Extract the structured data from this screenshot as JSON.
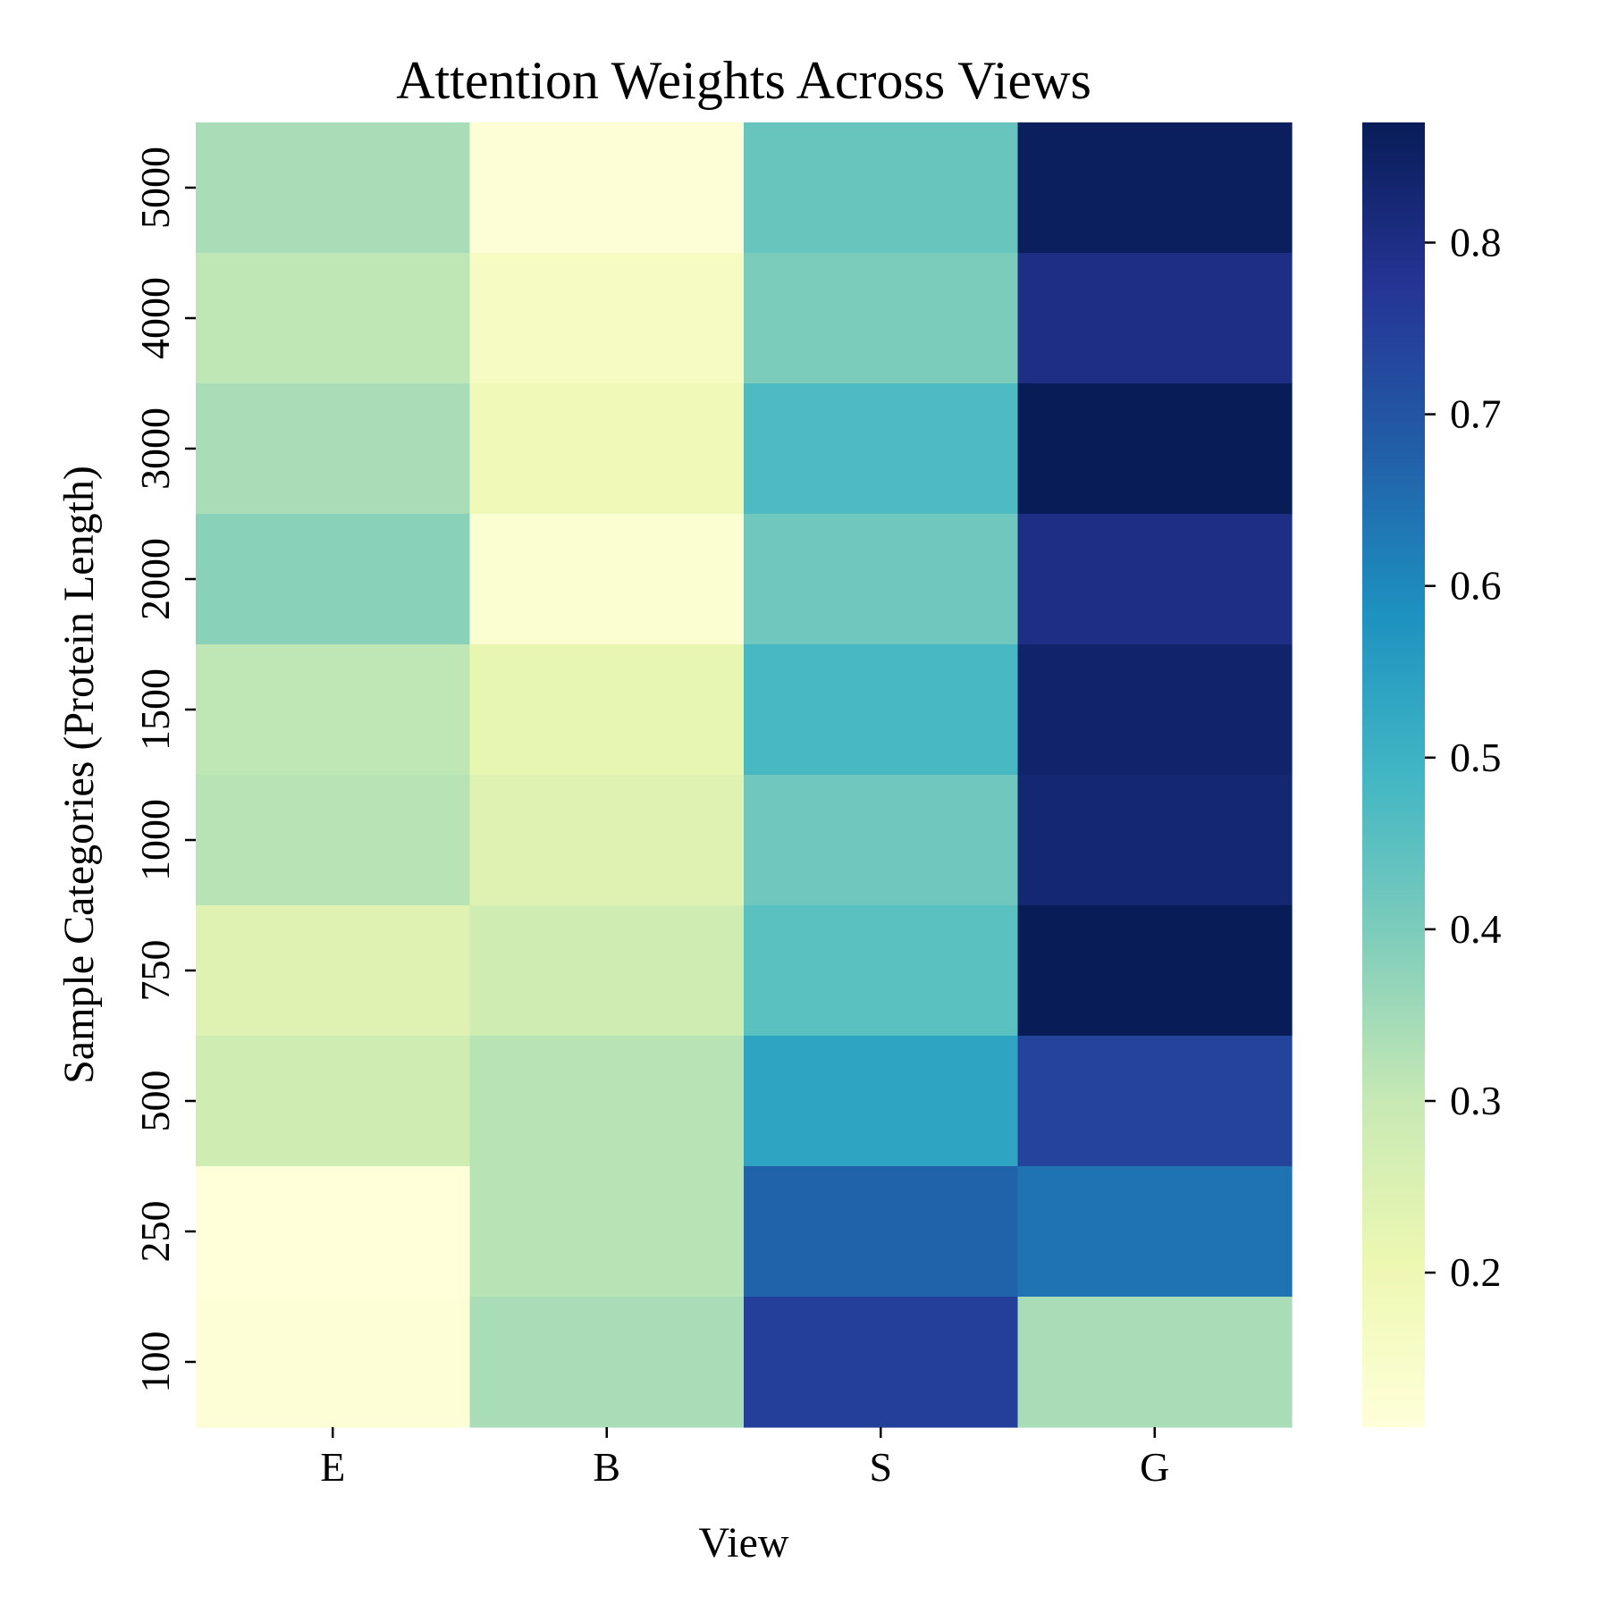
{
  "chart_data": {
    "type": "heatmap",
    "title": "Attention Weights Across Views",
    "xlabel": "View",
    "ylabel": "Sample Categories (Protein Length)",
    "x_categories": [
      "E",
      "B",
      "S",
      "G"
    ],
    "y_categories": [
      "5000",
      "4000",
      "3000",
      "2000",
      "1500",
      "1000",
      "750",
      "500",
      "250",
      "100"
    ],
    "values": [
      [
        0.34,
        0.12,
        0.43,
        0.86
      ],
      [
        0.31,
        0.16,
        0.4,
        0.8
      ],
      [
        0.34,
        0.19,
        0.47,
        0.87
      ],
      [
        0.38,
        0.13,
        0.42,
        0.8
      ],
      [
        0.31,
        0.22,
        0.48,
        0.84
      ],
      [
        0.32,
        0.24,
        0.42,
        0.83
      ],
      [
        0.24,
        0.28,
        0.45,
        0.87
      ],
      [
        0.28,
        0.32,
        0.54,
        0.74
      ],
      [
        0.11,
        0.32,
        0.67,
        0.64
      ],
      [
        0.12,
        0.34,
        0.75,
        0.34
      ]
    ],
    "colorbar": {
      "min": 0.11,
      "max": 0.87,
      "ticks": [
        "0.2",
        "0.3",
        "0.4",
        "0.5",
        "0.6",
        "0.7",
        "0.8"
      ],
      "colormap": "YlGnBu",
      "colors": [
        "#ffffd9",
        "#edf8b1",
        "#c7e9b4",
        "#7fcdbb",
        "#41b6c4",
        "#1d91c0",
        "#225ea8",
        "#253494",
        "#081d58"
      ]
    },
    "grid": false,
    "legend": "none"
  }
}
